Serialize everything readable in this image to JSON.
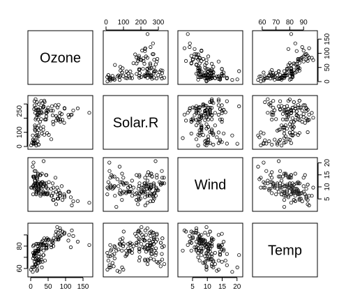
{
  "chart_data": {
    "type": "scatter",
    "variables": [
      "Ozone",
      "Solar.R",
      "Wind",
      "Temp"
    ],
    "axes": {
      "Ozone": {
        "range": [
          0,
          170
        ],
        "ticks": [
          0,
          50,
          100,
          150
        ]
      },
      "Solar.R": {
        "range": [
          0,
          340
        ],
        "ticks": [
          0,
          100,
          200,
          300
        ]
      },
      "Wind": {
        "range": [
          1,
          21
        ],
        "ticks": [
          5,
          10,
          15,
          20
        ]
      },
      "Temp": {
        "range": [
          55,
          98
        ],
        "ticks": [
          60,
          70,
          80,
          90
        ]
      }
    },
    "top_axis_ticks": [
      {
        "var": "Solar.R",
        "labels": [
          "0",
          "100",
          "200",
          "300"
        ]
      },
      {
        "var": "Temp",
        "labels": [
          "60",
          "70",
          "80",
          "90"
        ]
      }
    ],
    "bottom_axis_ticks": [
      {
        "var": "Ozone",
        "labels": [
          "0",
          "50",
          "100",
          "150"
        ]
      },
      {
        "var": "Wind",
        "labels": [
          "5",
          "10",
          "15",
          "20"
        ]
      }
    ],
    "left_axis_ticks": [
      {
        "var": "Solar.R",
        "labels": [
          "0",
          "100",
          "250"
        ],
        "values": [
          0,
          100,
          250
        ]
      },
      {
        "var": "Temp",
        "labels": [
          "60",
          "80"
        ],
        "values": [
          60,
          80
        ]
      }
    ],
    "right_axis_ticks": [
      {
        "var": "Ozone",
        "labels": [
          "0",
          "50",
          "100",
          "150"
        ]
      },
      {
        "var": "Wind",
        "labels": [
          "5",
          "10",
          "15",
          "20"
        ]
      }
    ],
    "grid": false,
    "legend": "none",
    "observations": [
      [
        41,
        190,
        7.4,
        67
      ],
      [
        36,
        118,
        8.0,
        72
      ],
      [
        12,
        149,
        12.6,
        74
      ],
      [
        18,
        313,
        11.5,
        62
      ],
      [
        28,
        null,
        14.9,
        66
      ],
      [
        23,
        299,
        8.6,
        65
      ],
      [
        19,
        99,
        13.8,
        59
      ],
      [
        8,
        19,
        20.1,
        61
      ],
      [
        7,
        null,
        6.9,
        74
      ],
      [
        16,
        256,
        9.7,
        69
      ],
      [
        11,
        290,
        9.2,
        66
      ],
      [
        14,
        274,
        10.9,
        68
      ],
      [
        18,
        65,
        13.2,
        58
      ],
      [
        14,
        334,
        11.5,
        64
      ],
      [
        34,
        307,
        12.0,
        66
      ],
      [
        6,
        78,
        18.4,
        57
      ],
      [
        30,
        322,
        11.5,
        68
      ],
      [
        11,
        44,
        9.7,
        62
      ],
      [
        1,
        8,
        9.7,
        59
      ],
      [
        11,
        320,
        16.6,
        73
      ],
      [
        4,
        25,
        9.7,
        61
      ],
      [
        32,
        92,
        12.0,
        61
      ],
      [
        23,
        13,
        12.0,
        67
      ],
      [
        45,
        252,
        14.9,
        81
      ],
      [
        115,
        223,
        5.7,
        79
      ],
      [
        37,
        279,
        7.4,
        76
      ],
      [
        29,
        127,
        9.7,
        82
      ],
      [
        71,
        291,
        13.8,
        90
      ],
      [
        39,
        323,
        11.5,
        87
      ],
      [
        23,
        148,
        8.0,
        82
      ],
      [
        21,
        191,
        14.9,
        77
      ],
      [
        37,
        284,
        20.7,
        72
      ],
      [
        20,
        37,
        9.2,
        65
      ],
      [
        12,
        120,
        11.5,
        73
      ],
      [
        13,
        137,
        10.3,
        76
      ],
      [
        135,
        269,
        4.1,
        84
      ],
      [
        49,
        248,
        9.2,
        85
      ],
      [
        32,
        236,
        9.2,
        81
      ],
      [
        64,
        175,
        4.6,
        83
      ],
      [
        40,
        314,
        10.9,
        83
      ],
      [
        77,
        276,
        5.1,
        88
      ],
      [
        97,
        267,
        6.3,
        92
      ],
      [
        97,
        272,
        5.7,
        92
      ],
      [
        85,
        175,
        7.4,
        89
      ],
      [
        10,
        264,
        14.3,
        73
      ],
      [
        27,
        175,
        14.9,
        81
      ],
      [
        7,
        48,
        14.3,
        80
      ],
      [
        48,
        260,
        6.9,
        81
      ],
      [
        35,
        274,
        10.3,
        82
      ],
      [
        61,
        285,
        6.3,
        84
      ],
      [
        79,
        187,
        5.1,
        87
      ],
      [
        63,
        220,
        11.5,
        85
      ],
      [
        16,
        7,
        6.9,
        74
      ],
      [
        80,
        294,
        8.6,
        86
      ],
      [
        108,
        223,
        8.0,
        85
      ],
      [
        20,
        81,
        8.6,
        82
      ],
      [
        52,
        82,
        12.0,
        86
      ],
      [
        82,
        213,
        7.4,
        88
      ],
      [
        50,
        275,
        7.4,
        86
      ],
      [
        64,
        253,
        7.4,
        83
      ],
      [
        59,
        254,
        9.2,
        81
      ],
      [
        39,
        83,
        6.9,
        81
      ],
      [
        9,
        24,
        13.8,
        81
      ],
      [
        16,
        77,
        7.4,
        82
      ],
      [
        78,
        null,
        6.9,
        86
      ],
      [
        35,
        null,
        7.4,
        85
      ],
      [
        66,
        null,
        4.6,
        87
      ],
      [
        122,
        255,
        4.0,
        89
      ],
      [
        89,
        229,
        10.3,
        90
      ],
      [
        110,
        207,
        8.0,
        90
      ],
      [
        44,
        192,
        11.5,
        86
      ],
      [
        28,
        273,
        11.5,
        82
      ],
      [
        65,
        157,
        9.7,
        80
      ],
      [
        22,
        71,
        10.3,
        77
      ],
      [
        59,
        51,
        6.3,
        79
      ],
      [
        23,
        115,
        7.4,
        76
      ],
      [
        31,
        244,
        10.9,
        78
      ],
      [
        44,
        190,
        10.3,
        78
      ],
      [
        21,
        259,
        15.5,
        77
      ],
      [
        9,
        36,
        14.3,
        72
      ],
      [
        45,
        212,
        9.7,
        79
      ],
      [
        168,
        238,
        3.4,
        81
      ],
      [
        73,
        215,
        8.0,
        86
      ],
      [
        76,
        203,
        9.7,
        97
      ],
      [
        118,
        225,
        2.3,
        94
      ],
      [
        84,
        237,
        6.3,
        96
      ],
      [
        85,
        188,
        6.3,
        94
      ],
      [
        96,
        167,
        6.9,
        91
      ],
      [
        78,
        197,
        5.1,
        92
      ],
      [
        73,
        183,
        2.8,
        93
      ],
      [
        91,
        189,
        4.6,
        93
      ],
      [
        47,
        95,
        7.4,
        87
      ],
      [
        32,
        92,
        15.5,
        84
      ],
      [
        20,
        252,
        10.9,
        80
      ],
      [
        23,
        220,
        10.3,
        78
      ],
      [
        21,
        230,
        10.9,
        75
      ],
      [
        24,
        259,
        9.7,
        73
      ],
      [
        44,
        236,
        14.9,
        81
      ],
      [
        21,
        259,
        15.5,
        76
      ],
      [
        28,
        238,
        6.3,
        77
      ],
      [
        9,
        24,
        10.9,
        71
      ],
      [
        13,
        112,
        11.5,
        71
      ],
      [
        46,
        237,
        6.9,
        78
      ],
      [
        18,
        224,
        13.8,
        67
      ],
      [
        13,
        27,
        10.3,
        76
      ],
      [
        24,
        238,
        10.3,
        68
      ],
      [
        16,
        201,
        8.0,
        82
      ],
      [
        13,
        238,
        12.6,
        64
      ],
      [
        23,
        14,
        9.2,
        71
      ],
      [
        36,
        139,
        10.3,
        81
      ],
      [
        7,
        49,
        10.3,
        69
      ],
      [
        14,
        20,
        16.6,
        63
      ],
      [
        30,
        193,
        6.9,
        70
      ],
      [
        14,
        191,
        14.3,
        75
      ],
      [
        18,
        131,
        8.0,
        76
      ],
      [
        20,
        223,
        11.5,
        68
      ],
      [
        null,
        286,
        8.6,
        78
      ],
      [
        null,
        287,
        9.7,
        74
      ],
      [
        null,
        242,
        16.1,
        67
      ],
      [
        null,
        186,
        9.2,
        84
      ],
      [
        null,
        220,
        8.6,
        85
      ],
      [
        null,
        264,
        14.3,
        79
      ],
      [
        null,
        127,
        9.7,
        82
      ],
      [
        null,
        273,
        6.9,
        87
      ],
      [
        null,
        291,
        14.9,
        91
      ],
      [
        null,
        323,
        11.5,
        87
      ],
      [
        null,
        259,
        10.9,
        93
      ],
      [
        null,
        250,
        9.2,
        92
      ],
      [
        null,
        332,
        13.8,
        80
      ],
      [
        null,
        322,
        13.8,
        79
      ],
      [
        null,
        98,
        11.5,
        80
      ],
      [
        null,
        101,
        10.9,
        93
      ],
      [
        null,
        150,
        6.3,
        77
      ],
      [
        null,
        59,
        1.7,
        76
      ],
      [
        null,
        91,
        4.6,
        76
      ],
      [
        null,
        250,
        6.3,
        76
      ],
      [
        null,
        135,
        8.0,
        75
      ],
      [
        null,
        127,
        8.0,
        78
      ],
      [
        null,
        47,
        10.3,
        73
      ],
      [
        null,
        98,
        11.5,
        80
      ],
      [
        null,
        31,
        14.9,
        77
      ],
      [
        null,
        138,
        8.0,
        83
      ],
      [
        null,
        269,
        4.1,
        84
      ],
      [
        null,
        248,
        9.2,
        85
      ],
      [
        null,
        236,
        9.2,
        81
      ],
      [
        null,
        101,
        8.0,
        82
      ],
      [
        null,
        175,
        4.6,
        83
      ],
      [
        null,
        314,
        10.9,
        83
      ]
    ]
  }
}
